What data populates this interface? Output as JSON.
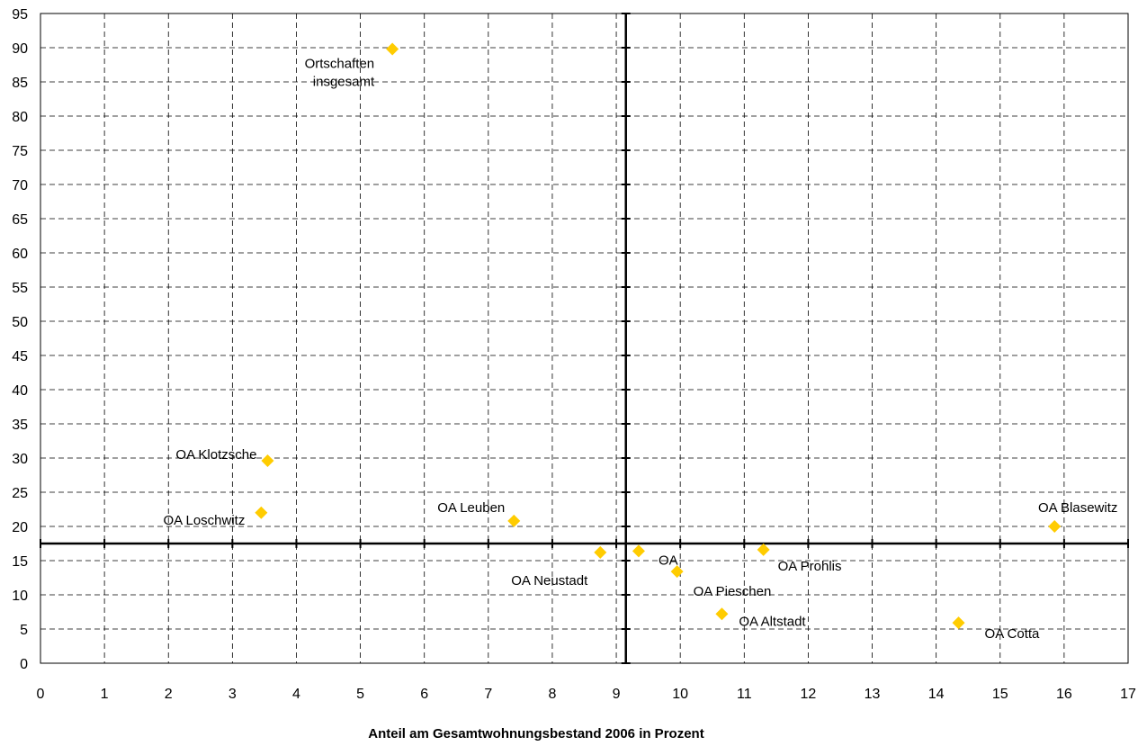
{
  "chart_data": {
    "type": "scatter",
    "title": "",
    "xlabel": "Anteil am Gesamtwohnungsbestand 2006 in Prozent",
    "ylabel": "",
    "xlim": [
      0,
      17
    ],
    "ylim": [
      0,
      95
    ],
    "x_ticks": [
      0,
      1,
      2,
      3,
      4,
      5,
      6,
      7,
      8,
      9,
      10,
      11,
      12,
      13,
      14,
      15,
      16,
      17
    ],
    "y_ticks": [
      0,
      5,
      10,
      15,
      20,
      25,
      30,
      35,
      40,
      45,
      50,
      55,
      60,
      65,
      70,
      75,
      80,
      85,
      90,
      95
    ],
    "grid": true,
    "grid_style": "dashed",
    "marker_color": "#FFCC00",
    "marker_shape": "diamond",
    "reference_lines": {
      "x": 9.15,
      "y": 17.5
    },
    "points": [
      {
        "label": "Ortschaften insgesamt",
        "label_lines": [
          "Ortschaften",
          "insgesamt"
        ],
        "x": 5.5,
        "y": 89.8
      },
      {
        "label": "OA Klotzsche",
        "label_lines": [
          "OA Klotzsche"
        ],
        "x": 3.55,
        "y": 29.6
      },
      {
        "label": "OA Loschwitz",
        "label_lines": [
          "OA Loschwitz"
        ],
        "x": 3.45,
        "y": 22.0
      },
      {
        "label": "OA Leuben",
        "label_lines": [
          "OA Leuben"
        ],
        "x": 7.4,
        "y": 20.8
      },
      {
        "label": "OA Blasewitz",
        "label_lines": [
          "OA Blasewitz"
        ],
        "x": 15.85,
        "y": 20.0
      },
      {
        "label": "OA Neustadt",
        "label_lines": [
          "OA Neustadt"
        ],
        "x": 8.75,
        "y": 16.2
      },
      {
        "label": "OA",
        "label_lines": [
          "OA"
        ],
        "x": 9.35,
        "y": 16.4
      },
      {
        "label": "OA Prohlis",
        "label_lines": [
          "OA Prohlis"
        ],
        "x": 11.3,
        "y": 16.6
      },
      {
        "label": "OA Pieschen",
        "label_lines": [
          "OA Pieschen"
        ],
        "x": 9.95,
        "y": 13.4
      },
      {
        "label": "OA Altstadt",
        "label_lines": [
          "OA Altstadt"
        ],
        "x": 10.65,
        "y": 7.2
      },
      {
        "label": "OA Cotta",
        "label_lines": [
          "OA Cotta"
        ],
        "x": 14.35,
        "y": 5.9
      }
    ]
  }
}
